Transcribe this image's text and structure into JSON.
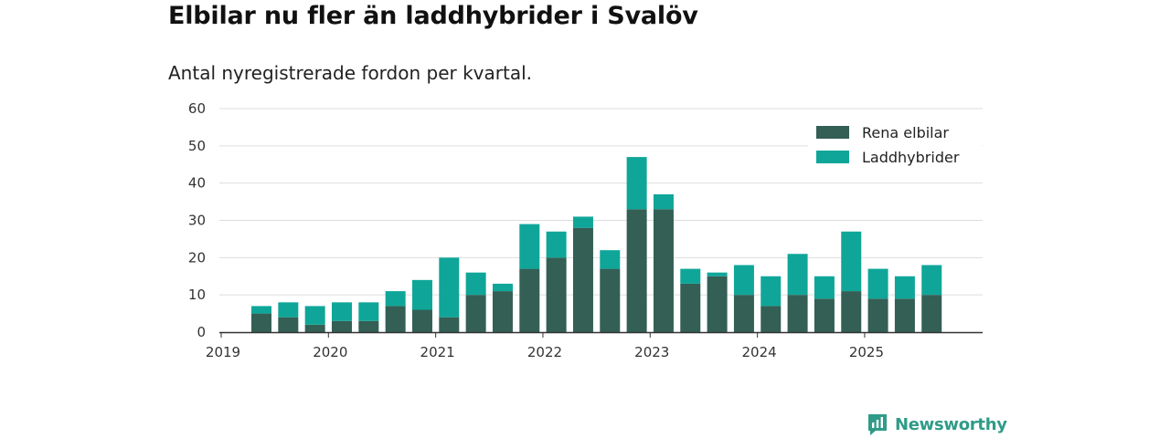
{
  "title": "Elbilar nu fler än laddhybrider i Svalöv",
  "subtitle": "Antal nyregistrerade fordon per kvartal.",
  "brand": {
    "name": "Newsworthy",
    "icon": "newsworthy-logo-icon",
    "color": "#2f9b88"
  },
  "colors": {
    "series_bev": "#335f55",
    "series_phev": "#0fa699",
    "grid": "#dddddd",
    "axis": "#333333"
  },
  "chart_data": {
    "type": "bar",
    "stacked": true,
    "title": "Elbilar nu fler än laddhybrider i Svalöv",
    "subtitle": "Antal nyregistrerade fordon per kvartal.",
    "xlabel": "",
    "ylabel": "",
    "ylim": [
      0,
      60
    ],
    "yticks": [
      "0",
      "10",
      "20",
      "30",
      "40",
      "50",
      "60"
    ],
    "xticks": [
      "2019",
      "2020",
      "2021",
      "2022",
      "2023",
      "2024",
      "2025"
    ],
    "grid": true,
    "legend_position": "top-right",
    "categories": [
      "2019 Q2",
      "2019 Q3",
      "2019 Q4",
      "2020 Q1",
      "2020 Q2",
      "2020 Q3",
      "2020 Q4",
      "2021 Q1",
      "2021 Q2",
      "2021 Q3",
      "2021 Q4",
      "2022 Q1",
      "2022 Q2",
      "2022 Q3",
      "2022 Q4",
      "2023 Q1",
      "2023 Q2",
      "2023 Q3",
      "2023 Q4",
      "2024 Q1",
      "2024 Q2",
      "2024 Q3",
      "2024 Q4",
      "2025 Q1",
      "2025 Q2",
      "2025 Q3"
    ],
    "series": [
      {
        "name": "Rena elbilar",
        "color": "#335f55",
        "values": [
          5,
          4,
          2,
          3,
          3,
          7,
          6,
          4,
          10,
          11,
          17,
          20,
          28,
          17,
          33,
          33,
          13,
          15,
          10,
          7,
          10,
          9,
          11,
          9,
          9,
          10
        ]
      },
      {
        "name": "Laddhybrider",
        "color": "#0fa699",
        "values": [
          2,
          4,
          5,
          5,
          5,
          4,
          8,
          16,
          6,
          2,
          12,
          7,
          3,
          5,
          14,
          4,
          4,
          1,
          8,
          8,
          11,
          6,
          16,
          8,
          6,
          8
        ]
      }
    ]
  }
}
